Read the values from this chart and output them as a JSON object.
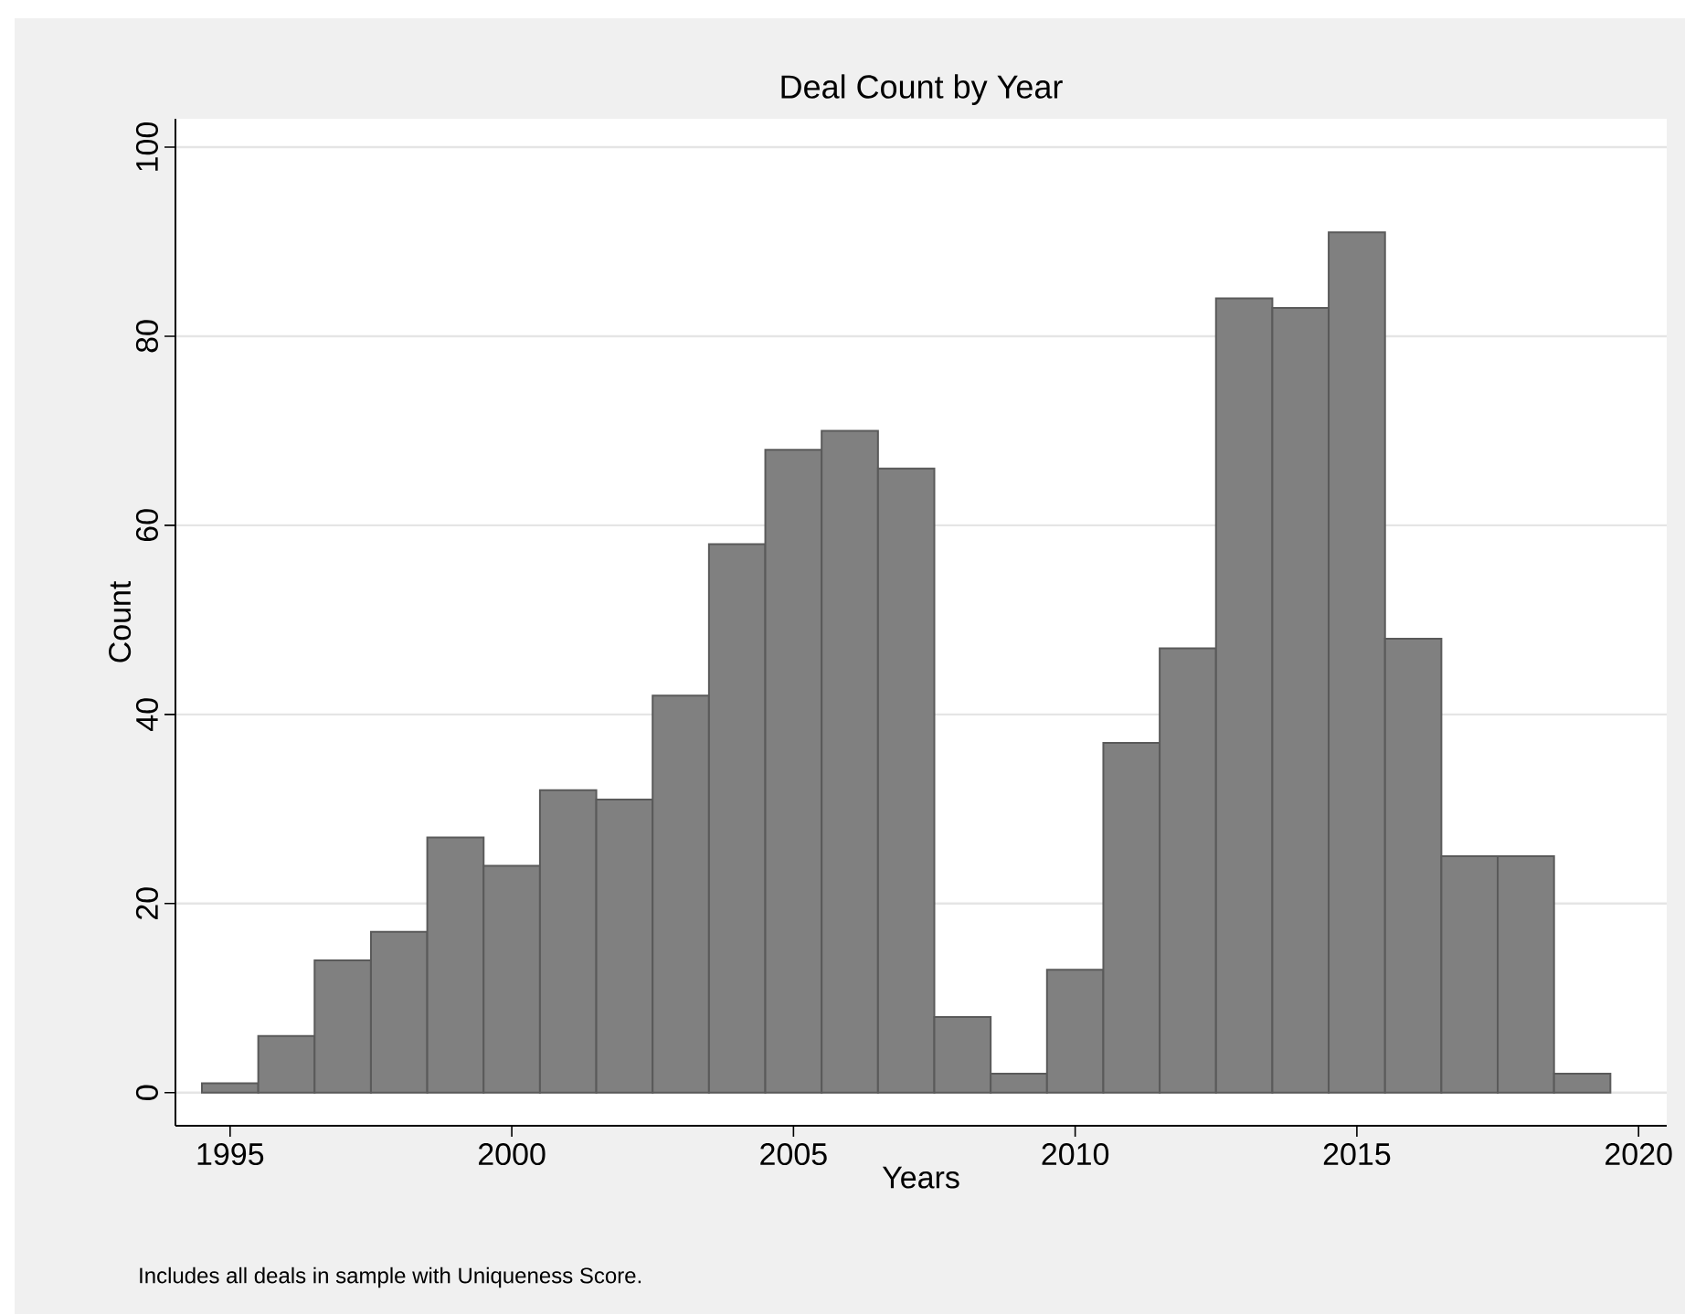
{
  "chart_data": {
    "type": "histogram",
    "title": "Deal Count by Year",
    "xlabel": "Years",
    "ylabel": "Count",
    "annotations": [
      "Includes all deals in sample with Uniqueness Score."
    ],
    "bins": [
      1994.5,
      1995.5,
      1996.5,
      1997.5,
      1998.5,
      1999.5,
      2000.5,
      2001.5,
      2002.5,
      2003.5,
      2004.5,
      2005.5,
      2006.5,
      2007.5,
      2008.5,
      2009.5,
      2010.5,
      2011.5,
      2012.5,
      2013.5,
      2014.5,
      2015.5,
      2016.5,
      2017.5,
      2018.5,
      2019.5
    ],
    "values": [
      1,
      6,
      14,
      17,
      27,
      24,
      32,
      31,
      42,
      58,
      68,
      70,
      66,
      8,
      2,
      13,
      37,
      47,
      84,
      83,
      91,
      48,
      25,
      25,
      2
    ],
    "color": "#808080",
    "xlim": [
      1994.03,
      2020.5
    ],
    "ylim": [
      -3.5,
      103
    ],
    "xticks": [
      1995,
      2000,
      2005,
      2010,
      2015,
      2020
    ],
    "yticks": [
      0,
      20,
      40,
      60,
      80,
      100
    ],
    "grid": "y"
  }
}
